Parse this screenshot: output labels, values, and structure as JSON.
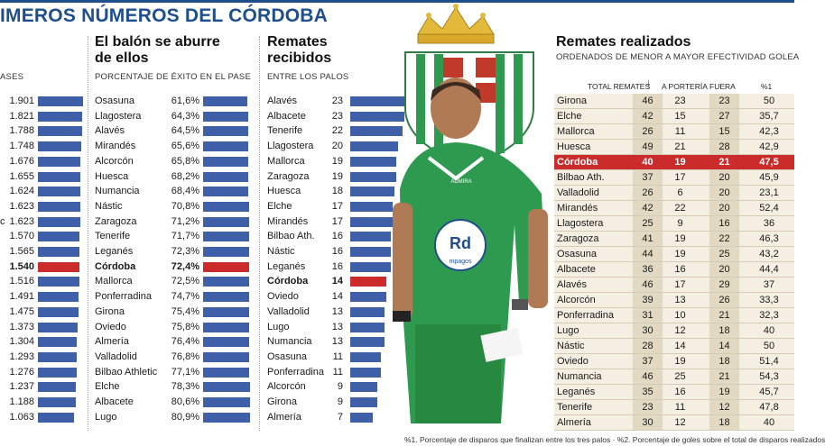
{
  "title": "IMEROS NÚMEROS DEL CÓRDOBA",
  "col1": {
    "subtitle": "ASES",
    "rows": [
      {
        "label": "",
        "value": "1.901",
        "bar": 1901
      },
      {
        "label": "",
        "value": "1.821",
        "bar": 1821
      },
      {
        "label": "",
        "value": "1.788",
        "bar": 1788
      },
      {
        "label": "",
        "value": "1.748",
        "bar": 1748
      },
      {
        "label": "",
        "value": "1.676",
        "bar": 1676
      },
      {
        "label": "",
        "value": "1.655",
        "bar": 1655
      },
      {
        "label": "",
        "value": "1.624",
        "bar": 1624
      },
      {
        "label": "",
        "value": "1.623",
        "bar": 1623
      },
      {
        "label": "c",
        "value": "1.623",
        "bar": 1623
      },
      {
        "label": "",
        "value": "1.570",
        "bar": 1570
      },
      {
        "label": "",
        "value": "1.565",
        "bar": 1565
      },
      {
        "label": "",
        "value": "1.540",
        "bar": 1540,
        "highlight": true
      },
      {
        "label": "",
        "value": "1.516",
        "bar": 1516
      },
      {
        "label": "",
        "value": "1.491",
        "bar": 1491
      },
      {
        "label": "",
        "value": "1.475",
        "bar": 1475
      },
      {
        "label": "",
        "value": "1.373",
        "bar": 1373
      },
      {
        "label": "",
        "value": "1.304",
        "bar": 1304
      },
      {
        "label": "",
        "value": "1.293",
        "bar": 1293
      },
      {
        "label": "",
        "value": "1.276",
        "bar": 1276
      },
      {
        "label": "",
        "value": "1.237",
        "bar": 1237
      },
      {
        "label": "",
        "value": "1.188",
        "bar": 1188
      },
      {
        "label": "",
        "value": "1.063",
        "bar": 1063
      }
    ]
  },
  "col2": {
    "heading1": "El balón se aburre",
    "heading2": "de ellos",
    "subtitle": "PORCENTAJE DE ÉXITO EN EL PASE",
    "rows": [
      {
        "label": "Osasuna",
        "value": "61,6%",
        "bar": 61.6
      },
      {
        "label": "Llagostera",
        "value": "64,3%",
        "bar": 64.3
      },
      {
        "label": "Alavés",
        "value": "64,5%",
        "bar": 64.5
      },
      {
        "label": "Mirandés",
        "value": "65,6%",
        "bar": 65.6
      },
      {
        "label": "Alcorcón",
        "value": "65,8%",
        "bar": 65.8
      },
      {
        "label": "Huesca",
        "value": "68,2%",
        "bar": 68.2
      },
      {
        "label": "Numancia",
        "value": "68,4%",
        "bar": 68.4
      },
      {
        "label": "Nástic",
        "value": "70,8%",
        "bar": 70.8
      },
      {
        "label": "Zaragoza",
        "value": "71,2%",
        "bar": 71.2
      },
      {
        "label": "Tenerife",
        "value": "71,7%",
        "bar": 71.7
      },
      {
        "label": "Leganés",
        "value": "72,3%",
        "bar": 72.3
      },
      {
        "label": "Córdoba",
        "value": "72,4%",
        "bar": 72.4,
        "highlight": true
      },
      {
        "label": "Mallorca",
        "value": "72,5%",
        "bar": 72.5
      },
      {
        "label": "Ponferradina",
        "value": "74,7%",
        "bar": 74.7
      },
      {
        "label": "Girona",
        "value": "75,4%",
        "bar": 75.4
      },
      {
        "label": "Oviedo",
        "value": "75,8%",
        "bar": 75.8
      },
      {
        "label": "Almería",
        "value": "76,4%",
        "bar": 76.4
      },
      {
        "label": "Valladolid",
        "value": "76,8%",
        "bar": 76.8
      },
      {
        "label": "Bilbao Athletic",
        "value": "77,1%",
        "bar": 77.1
      },
      {
        "label": "Elche",
        "value": "78,3%",
        "bar": 78.3
      },
      {
        "label": "Albacete",
        "value": "80,6%",
        "bar": 80.6
      },
      {
        "label": "Lugo",
        "value": "80,9%",
        "bar": 80.9
      }
    ]
  },
  "col3": {
    "heading1": "Remates",
    "heading2": "recibidos",
    "subtitle": "ENTRE LOS PALOS",
    "rows": [
      {
        "label": "Alavés",
        "value": "23",
        "bar": 23
      },
      {
        "label": "Albacete",
        "value": "23",
        "bar": 23
      },
      {
        "label": "Tenerife",
        "value": "22",
        "bar": 22
      },
      {
        "label": "Llagostera",
        "value": "20",
        "bar": 20
      },
      {
        "label": "Mallorca",
        "value": "19",
        "bar": 19
      },
      {
        "label": "Zaragoza",
        "value": "19",
        "bar": 19
      },
      {
        "label": "Huesca",
        "value": "18",
        "bar": 18
      },
      {
        "label": "Elche",
        "value": "17",
        "bar": 17
      },
      {
        "label": "Mirandés",
        "value": "17",
        "bar": 17
      },
      {
        "label": "Bilbao Ath.",
        "value": "16",
        "bar": 16
      },
      {
        "label": "Nástic",
        "value": "16",
        "bar": 16
      },
      {
        "label": "Leganés",
        "value": "16",
        "bar": 16
      },
      {
        "label": "Córdoba",
        "value": "14",
        "bar": 14,
        "highlight": true
      },
      {
        "label": "Oviedo",
        "value": "14",
        "bar": 14
      },
      {
        "label": "Valladolid",
        "value": "13",
        "bar": 13
      },
      {
        "label": "Lugo",
        "value": "13",
        "bar": 13
      },
      {
        "label": "Numancia",
        "value": "13",
        "bar": 13
      },
      {
        "label": "Osasuna",
        "value": "11",
        "bar": 11
      },
      {
        "label": "Ponferradina",
        "value": "11",
        "bar": 11
      },
      {
        "label": "Alcorcón",
        "value": "9",
        "bar": 9
      },
      {
        "label": "Girona",
        "value": "9",
        "bar": 9
      },
      {
        "label": "Almería",
        "value": "7",
        "bar": 7
      }
    ]
  },
  "photo": {
    "shirt_brand": "ADMIRA",
    "logo_text": "Rd",
    "logo_sub": "mpagos"
  },
  "table": {
    "heading": "Remates realizados",
    "subtitle": "ORDENADOS DE MENOR A MAYOR EFECTIVIDAD GOLEA",
    "headers": {
      "total": "TOTAL REMATES",
      "arrow": "↓",
      "porteria": "A PORTERÍA",
      "fuera": "FUERA",
      "pct": "%1"
    },
    "rows": [
      {
        "team": "Girona",
        "total": "46",
        "porteria": "23",
        "fuera": "23",
        "pct": "50"
      },
      {
        "team": "Elche",
        "total": "42",
        "porteria": "15",
        "fuera": "27",
        "pct": "35,7"
      },
      {
        "team": "Mallorca",
        "total": "26",
        "porteria": "11",
        "fuera": "15",
        "pct": "42,3"
      },
      {
        "team": "Huesca",
        "total": "49",
        "porteria": "21",
        "fuera": "28",
        "pct": "42,9"
      },
      {
        "team": "Córdoba",
        "total": "40",
        "porteria": "19",
        "fuera": "21",
        "pct": "47,5",
        "highlight": true
      },
      {
        "team": "Bilbao Ath.",
        "total": "37",
        "porteria": "17",
        "fuera": "20",
        "pct": "45,9"
      },
      {
        "team": "Valladolid",
        "total": "26",
        "porteria": "6",
        "fuera": "20",
        "pct": "23,1"
      },
      {
        "team": "Mirandés",
        "total": "42",
        "porteria": "22",
        "fuera": "20",
        "pct": "52,4"
      },
      {
        "team": "Llagostera",
        "total": "25",
        "porteria": "9",
        "fuera": "16",
        "pct": "36"
      },
      {
        "team": "Zaragoza",
        "total": "41",
        "porteria": "19",
        "fuera": "22",
        "pct": "46,3"
      },
      {
        "team": "Osasuna",
        "total": "44",
        "porteria": "19",
        "fuera": "25",
        "pct": "43,2"
      },
      {
        "team": "Albacete",
        "total": "36",
        "porteria": "16",
        "fuera": "20",
        "pct": "44,4"
      },
      {
        "team": "Alavés",
        "total": "46",
        "porteria": "17",
        "fuera": "29",
        "pct": "37"
      },
      {
        "team": "Alcorcón",
        "total": "39",
        "porteria": "13",
        "fuera": "26",
        "pct": "33,3"
      },
      {
        "team": "Ponferradina",
        "total": "31",
        "porteria": "10",
        "fuera": "21",
        "pct": "32,3"
      },
      {
        "team": "Lugo",
        "total": "30",
        "porteria": "12",
        "fuera": "18",
        "pct": "40"
      },
      {
        "team": "Nástic",
        "total": "28",
        "porteria": "14",
        "fuera": "14",
        "pct": "50"
      },
      {
        "team": "Oviedo",
        "total": "37",
        "porteria": "19",
        "fuera": "18",
        "pct": "51,4"
      },
      {
        "team": "Numancia",
        "total": "46",
        "porteria": "25",
        "fuera": "21",
        "pct": "54,3"
      },
      {
        "team": "Leganés",
        "total": "35",
        "porteria": "16",
        "fuera": "19",
        "pct": "45,7"
      },
      {
        "team": "Tenerife",
        "total": "23",
        "porteria": "11",
        "fuera": "12",
        "pct": "47,8"
      },
      {
        "team": "Almería",
        "total": "30",
        "porteria": "12",
        "fuera": "18",
        "pct": "40"
      }
    ]
  },
  "footnote": "%1. Porcentaje de disparos que finalizan entre los tres palos · %2. Porcentaje de goles sobre el total de disparos realizados",
  "colors": {
    "accent": "#1f4e8c",
    "bar": "#3f5fa8",
    "highlight": "#cc2b2b",
    "jersey": "#2e9a4f"
  }
}
